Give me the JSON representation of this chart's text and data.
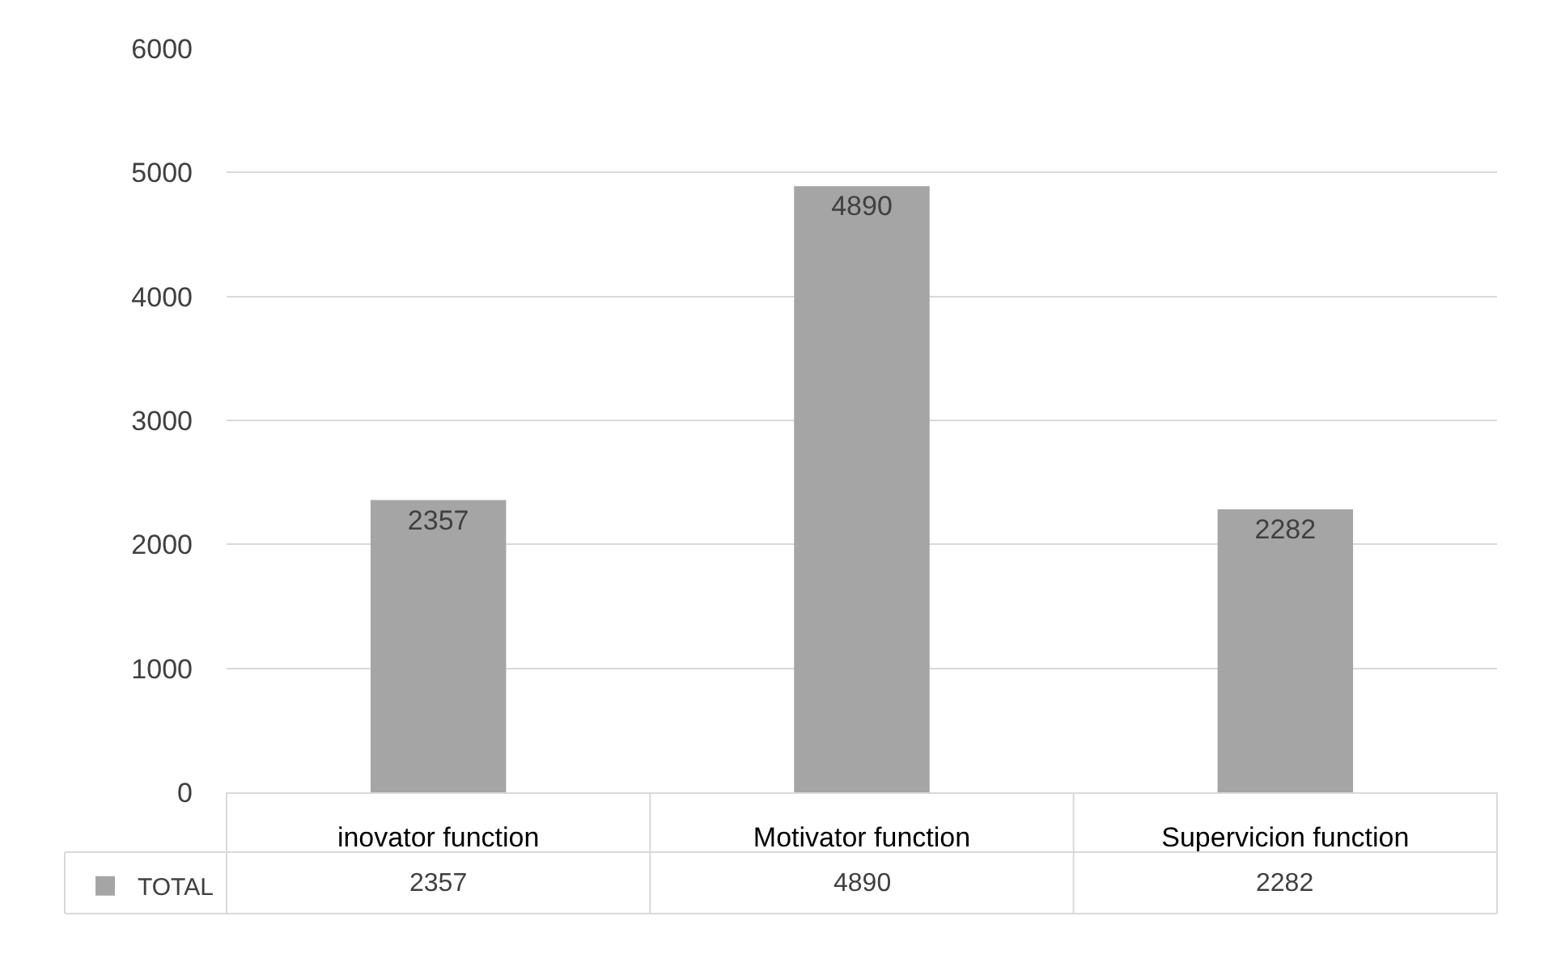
{
  "chart_data": {
    "type": "bar",
    "categories": [
      "inovator function",
      "Motivator function",
      "Supervicion function"
    ],
    "series": [
      {
        "name": "TOTAL",
        "color": "#a5a5a5",
        "values": [
          2357,
          4890,
          2282
        ],
        "value_labels": [
          "2357",
          "4890",
          "2282"
        ]
      }
    ],
    "ylim": [
      0,
      6000
    ],
    "yticks": [
      0,
      1000,
      2000,
      3000,
      4000,
      5000,
      6000
    ],
    "grid": "y",
    "annotations": [
      "2357",
      "4890",
      "2282"
    ],
    "legend": "bottom left"
  }
}
